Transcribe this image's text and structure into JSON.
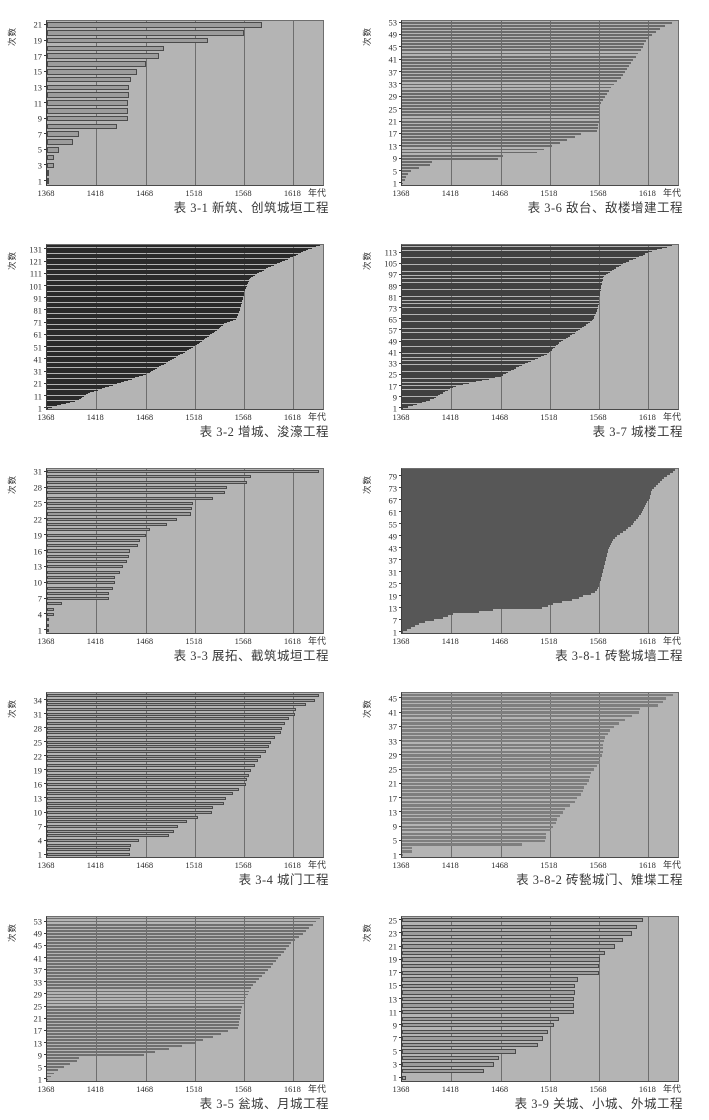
{
  "page": {
    "background": "#ffffff",
    "axis": {
      "y_label": "次数",
      "x_unit": "年代",
      "x_ticks": [
        1368,
        1418,
        1468,
        1518,
        1568,
        1618
      ],
      "x_range": [
        1368,
        1648
      ]
    },
    "colors": {
      "plot_background": "#b4b4b4",
      "gridline": "#6e6e6e",
      "axis_line": "#3c3c3c",
      "tick_text": "#2c2c2c",
      "title_text": "#383838"
    }
  },
  "chart_data": [
    {
      "id": "3-1",
      "type": "bar",
      "orientation": "horizontal",
      "title": "表 3-1 新筑、创筑城垣工程",
      "ylabel": "次数",
      "xlabel": "年代",
      "x_ticks": [
        1368,
        1418,
        1468,
        1518,
        1568,
        1618
      ],
      "x_range": [
        1368,
        1648
      ],
      "y_ticks": [
        1,
        3,
        5,
        7,
        9,
        11,
        13,
        15,
        17,
        19,
        21
      ],
      "bars_start_at": 1368,
      "bar_fill": "#9c9c9c",
      "bar_border": "#4a4a4a",
      "bar_end_years": [
        1369,
        1369,
        1375,
        1375,
        1380,
        1394,
        1400,
        1439,
        1450,
        1450,
        1450,
        1451,
        1451,
        1453,
        1459,
        1468,
        1482,
        1487,
        1531,
        1568,
        1586
      ]
    },
    {
      "id": "3-6",
      "type": "bar",
      "orientation": "horizontal",
      "title": "表 3-6 敌台、敌楼增建工程",
      "ylabel": "次数",
      "xlabel": "年代",
      "x_ticks": [
        1368,
        1418,
        1468,
        1518,
        1568,
        1618
      ],
      "x_range": [
        1368,
        1648
      ],
      "y_ticks": [
        1,
        5,
        9,
        13,
        17,
        21,
        25,
        29,
        33,
        37,
        41,
        45,
        49,
        53
      ],
      "bars_start_at": 1368,
      "bar_fill": "#6a6a6a",
      "bar_border": null,
      "bar_end_years": [
        1369,
        1371,
        1372,
        1374,
        1377,
        1385,
        1396,
        1398,
        1465,
        1470,
        1505,
        1512,
        1520,
        1528,
        1535,
        1543,
        1550,
        1566,
        1567,
        1567,
        1568,
        1568,
        1568,
        1568,
        1568,
        1568,
        1570,
        1572,
        1574,
        1576,
        1578,
        1580,
        1583,
        1586,
        1590,
        1592,
        1594,
        1596,
        1598,
        1600,
        1602,
        1605,
        1607,
        1610,
        1612,
        1614,
        1616,
        1619,
        1622,
        1626,
        1630,
        1635,
        1642
      ]
    },
    {
      "id": "3-2",
      "type": "bar",
      "orientation": "horizontal",
      "title": "表 3-2 增城、浚濠工程",
      "ylabel": "次数",
      "xlabel": "年代",
      "x_ticks": [
        1368,
        1418,
        1468,
        1518,
        1568,
        1618
      ],
      "x_range": [
        1368,
        1648
      ],
      "y_ticks": [
        1,
        11,
        21,
        31,
        41,
        51,
        61,
        71,
        81,
        91,
        101,
        111,
        121,
        131
      ],
      "bars_start_at": 1368,
      "bar_fill": "#2a2a2a",
      "bar_border": null,
      "bar_end_years": [
        1369,
        1373,
        1378,
        1382,
        1387,
        1391,
        1396,
        1400,
        1402,
        1404,
        1406,
        1408,
        1410,
        1412,
        1416,
        1420,
        1424,
        1427,
        1431,
        1435,
        1439,
        1443,
        1446,
        1450,
        1454,
        1457,
        1461,
        1465,
        1468,
        1472,
        1474,
        1476,
        1478,
        1480,
        1482,
        1484,
        1487,
        1489,
        1491,
        1493,
        1495,
        1497,
        1499,
        1501,
        1503,
        1506,
        1508,
        1510,
        1512,
        1514,
        1516,
        1518,
        1520,
        1522,
        1523,
        1525,
        1527,
        1528,
        1530,
        1532,
        1533,
        1535,
        1537,
        1538,
        1540,
        1542,
        1543,
        1545,
        1547,
        1548,
        1551,
        1554,
        1557,
        1560,
        1561,
        1561,
        1562,
        1562,
        1563,
        1563,
        1564,
        1564,
        1564,
        1565,
        1565,
        1565,
        1566,
        1566,
        1566,
        1567,
        1567,
        1567,
        1568,
        1568,
        1568,
        1568,
        1569,
        1569,
        1570,
        1570,
        1571,
        1571,
        1572,
        1572,
        1573,
        1573,
        1574,
        1575,
        1577,
        1579,
        1581,
        1583,
        1586,
        1588,
        1590,
        1592,
        1595,
        1598,
        1601,
        1604,
        1606,
        1609,
        1612,
        1615,
        1618,
        1621,
        1623,
        1626,
        1628,
        1631,
        1633,
        1637,
        1641,
        1645
      ]
    },
    {
      "id": "3-7",
      "type": "bar",
      "orientation": "horizontal",
      "title": "表 3-7 城楼工程",
      "ylabel": "次数",
      "xlabel": "年代",
      "x_ticks": [
        1368,
        1418,
        1468,
        1518,
        1568,
        1618
      ],
      "x_range": [
        1368,
        1648
      ],
      "y_ticks": [
        1,
        9,
        17,
        25,
        33,
        41,
        49,
        57,
        65,
        73,
        81,
        89,
        97,
        105,
        113
      ],
      "bars_start_at": 1368,
      "bar_fill": "#404040",
      "bar_border": null,
      "bar_end_years": [
        1369,
        1374,
        1379,
        1383,
        1388,
        1392,
        1396,
        1400,
        1402,
        1405,
        1407,
        1410,
        1412,
        1415,
        1417,
        1420,
        1423,
        1430,
        1436,
        1443,
        1449,
        1456,
        1462,
        1468,
        1470,
        1473,
        1476,
        1479,
        1482,
        1484,
        1487,
        1490,
        1493,
        1496,
        1499,
        1503,
        1506,
        1509,
        1512,
        1515,
        1517,
        1518,
        1520,
        1521,
        1523,
        1524,
        1526,
        1527,
        1529,
        1531,
        1534,
        1536,
        1538,
        1540,
        1543,
        1545,
        1547,
        1549,
        1551,
        1553,
        1555,
        1557,
        1559,
        1561,
        1562,
        1563,
        1563,
        1564,
        1565,
        1565,
        1566,
        1566,
        1567,
        1567,
        1567,
        1568,
        1568,
        1568,
        1568,
        1568,
        1568,
        1569,
        1569,
        1569,
        1569,
        1570,
        1570,
        1570,
        1570,
        1571,
        1571,
        1571,
        1572,
        1572,
        1572,
        1573,
        1575,
        1577,
        1579,
        1581,
        1583,
        1585,
        1588,
        1590,
        1592,
        1595,
        1598,
        1602,
        1605,
        1608,
        1612,
        1615,
        1618,
        1622,
        1627,
        1632,
        1637,
        1642
      ]
    },
    {
      "id": "3-3",
      "type": "bar",
      "orientation": "horizontal",
      "title": "表 3-3 展拓、截筑城垣工程",
      "ylabel": "次数",
      "xlabel": "年代",
      "x_ticks": [
        1368,
        1418,
        1468,
        1518,
        1568,
        1618
      ],
      "x_range": [
        1368,
        1648
      ],
      "y_ticks": [
        1,
        4,
        7,
        10,
        13,
        16,
        19,
        22,
        25,
        28,
        31
      ],
      "bars_start_at": 1368,
      "bar_fill": "#9c9c9c",
      "bar_border": "#4a4a4a",
      "bar_end_years": [
        1369,
        1369,
        1369,
        1375,
        1375,
        1383,
        1431,
        1431,
        1435,
        1437,
        1437,
        1442,
        1445,
        1449,
        1451,
        1452,
        1460,
        1462,
        1468,
        1472,
        1490,
        1500,
        1514,
        1515,
        1516,
        1536,
        1549,
        1551,
        1571,
        1575,
        1644
      ]
    },
    {
      "id": "3-8-1",
      "type": "bar",
      "orientation": "horizontal",
      "title": "表 3-8-1 砖甃城墙工程",
      "ylabel": "次数",
      "xlabel": "年代",
      "x_ticks": [
        1368,
        1418,
        1468,
        1518,
        1568,
        1618
      ],
      "x_range": [
        1368,
        1648
      ],
      "y_ticks": [
        1,
        7,
        13,
        19,
        25,
        31,
        37,
        43,
        49,
        55,
        61,
        67,
        73,
        79
      ],
      "bars_start_at": 1368,
      "bar_fill": "#575757",
      "bar_border": null,
      "bar_end_years": [
        1369,
        1373,
        1377,
        1381,
        1385,
        1391,
        1400,
        1410,
        1415,
        1420,
        1446,
        1460,
        1510,
        1516,
        1521,
        1530,
        1540,
        1548,
        1552,
        1560,
        1564,
        1566,
        1567,
        1568,
        1568,
        1569,
        1570,
        1570,
        1571,
        1571,
        1572,
        1572,
        1573,
        1573,
        1574,
        1574,
        1575,
        1575,
        1576,
        1576,
        1577,
        1577,
        1578,
        1579,
        1580,
        1581,
        1582,
        1584,
        1586,
        1589,
        1592,
        1595,
        1597,
        1600,
        1602,
        1603,
        1605,
        1607,
        1608,
        1610,
        1611,
        1612,
        1614,
        1615,
        1616,
        1617,
        1619,
        1620,
        1620,
        1621,
        1621,
        1622,
        1624,
        1626,
        1628,
        1630,
        1632,
        1634,
        1637,
        1640,
        1643,
        1645
      ]
    },
    {
      "id": "3-4",
      "type": "bar",
      "orientation": "horizontal",
      "title": "表 3-4 城门工程",
      "ylabel": "次数",
      "xlabel": "年代",
      "x_ticks": [
        1368,
        1418,
        1468,
        1518,
        1568,
        1618
      ],
      "x_range": [
        1368,
        1648
      ],
      "y_ticks": [
        1,
        4,
        7,
        10,
        13,
        16,
        19,
        22,
        25,
        28,
        31,
        34
      ],
      "bars_start_at": 1368,
      "bar_fill": "#9c9c9c",
      "bar_border": "#4a4a4a",
      "bar_end_years": [
        1452,
        1452,
        1453,
        1461,
        1492,
        1497,
        1501,
        1510,
        1521,
        1535,
        1536,
        1548,
        1550,
        1557,
        1563,
        1570,
        1571,
        1573,
        1575,
        1579,
        1582,
        1585,
        1590,
        1593,
        1595,
        1599,
        1605,
        1606,
        1609,
        1614,
        1620,
        1621,
        1631,
        1640,
        1644
      ]
    },
    {
      "id": "3-8-2",
      "type": "bar",
      "orientation": "horizontal",
      "title": "表 3-8-2 砖甃城门、雉堞工程",
      "ylabel": "次数",
      "xlabel": "年代",
      "x_ticks": [
        1368,
        1418,
        1468,
        1518,
        1568,
        1618
      ],
      "x_range": [
        1368,
        1648
      ],
      "y_ticks": [
        1,
        5,
        9,
        13,
        17,
        21,
        25,
        29,
        33,
        37,
        41,
        45
      ],
      "bars_start_at": 1368,
      "bar_fill": "#7e7e7e",
      "bar_border": null,
      "bar_end_years": [
        1369,
        1378,
        1378,
        1490,
        1513,
        1514,
        1514,
        1519,
        1521,
        1524,
        1525,
        1528,
        1531,
        1533,
        1538,
        1544,
        1546,
        1550,
        1552,
        1553,
        1556,
        1558,
        1559,
        1560,
        1563,
        1566,
        1569,
        1569,
        1571,
        1572,
        1572,
        1572,
        1573,
        1574,
        1577,
        1579,
        1583,
        1588,
        1594,
        1601,
        1608,
        1609,
        1628,
        1633,
        1636,
        1643
      ]
    },
    {
      "id": "3-5",
      "type": "bar",
      "orientation": "horizontal",
      "title": "表 3-5 瓮城、月城工程",
      "ylabel": "次数",
      "xlabel": "年代",
      "x_ticks": [
        1368,
        1418,
        1468,
        1518,
        1568,
        1618
      ],
      "x_range": [
        1368,
        1648
      ],
      "y_ticks": [
        1,
        5,
        9,
        13,
        17,
        21,
        25,
        29,
        33,
        37,
        41,
        45,
        49,
        53
      ],
      "bars_start_at": 1368,
      "bar_fill": "#6f6f6f",
      "bar_border": null,
      "bar_end_years": [
        1369,
        1372,
        1375,
        1379,
        1385,
        1391,
        1398,
        1400,
        1466,
        1478,
        1492,
        1505,
        1518,
        1526,
        1536,
        1545,
        1552,
        1562,
        1563,
        1563,
        1564,
        1564,
        1565,
        1565,
        1566,
        1568,
        1569,
        1570,
        1572,
        1573,
        1575,
        1577,
        1580,
        1583,
        1586,
        1589,
        1592,
        1595,
        1597,
        1600,
        1602,
        1605,
        1608,
        1610,
        1613,
        1616,
        1620,
        1624,
        1628,
        1631,
        1634,
        1638,
        1641,
        1645
      ]
    },
    {
      "id": "3-9",
      "type": "bar",
      "orientation": "horizontal",
      "title": "表 3-9 关城、小城、外城工程",
      "ylabel": "次数",
      "xlabel": "年代",
      "x_ticks": [
        1368,
        1418,
        1468,
        1518,
        1568,
        1618
      ],
      "x_range": [
        1368,
        1648
      ],
      "y_ticks": [
        1,
        3,
        5,
        7,
        9,
        11,
        13,
        15,
        17,
        19,
        21,
        23,
        25
      ],
      "bars_start_at": 1368,
      "bar_fill": "#9c9c9c",
      "bar_border": "#4a4a4a",
      "bar_end_years": [
        1372,
        1451,
        1461,
        1466,
        1484,
        1506,
        1511,
        1516,
        1522,
        1527,
        1542,
        1542,
        1542,
        1543,
        1543,
        1547,
        1568,
        1568,
        1569,
        1574,
        1584,
        1592,
        1601,
        1606,
        1612
      ]
    }
  ]
}
